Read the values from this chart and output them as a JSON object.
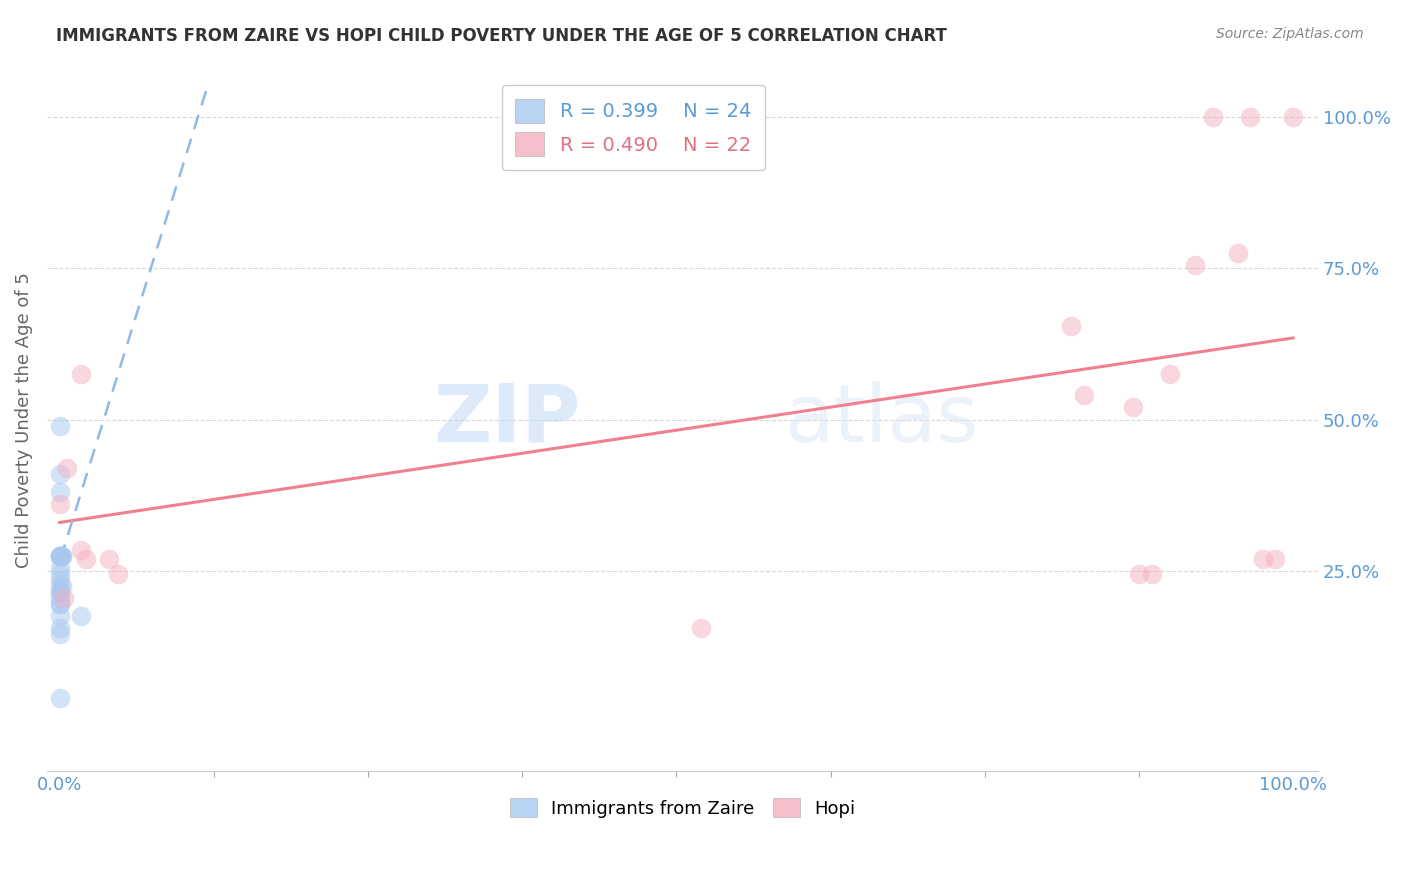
{
  "title": "IMMIGRANTS FROM ZAIRE VS HOPI CHILD POVERTY UNDER THE AGE OF 5 CORRELATION CHART",
  "source": "Source: ZipAtlas.com",
  "ylabel": "Child Poverty Under the Age of 5",
  "xlim": [
    -0.01,
    1.02
  ],
  "ylim": [
    -0.08,
    1.08
  ],
  "ytick_positions": [
    0.25,
    0.5,
    0.75,
    1.0
  ],
  "xtick_positions": [
    0.0,
    1.0
  ],
  "legend_r1": "R = 0.399",
  "legend_n1": "N = 24",
  "legend_r2": "R = 0.490",
  "legend_n2": "N = 22",
  "blue_color": "#a8c8f0",
  "pink_color": "#f4b0c0",
  "blue_line_color": "#90b8e8",
  "pink_line_color": "#f08090",
  "blue_points_x": [
    0.001,
    0.001,
    0.001,
    0.002,
    0.002,
    0.001,
    0.001,
    0.001,
    0.001,
    0.001,
    0.001,
    0.001,
    0.001,
    0.002,
    0.001,
    0.001,
    0.001,
    0.001,
    0.001,
    0.001,
    0.018,
    0.001,
    0.001,
    0.001
  ],
  "blue_points_y": [
    0.49,
    0.41,
    0.38,
    0.275,
    0.275,
    0.275,
    0.275,
    0.275,
    0.275,
    0.255,
    0.245,
    0.235,
    0.225,
    0.225,
    0.215,
    0.215,
    0.205,
    0.195,
    0.195,
    0.175,
    0.175,
    0.155,
    0.145,
    0.04
  ],
  "pink_points_x": [
    0.006,
    0.018,
    0.018,
    0.022,
    0.04,
    0.048,
    0.52,
    0.82,
    0.83,
    0.87,
    0.875,
    0.885,
    0.9,
    0.92,
    0.935,
    0.955,
    0.965,
    0.975,
    0.985,
    1.0,
    0.001,
    0.004
  ],
  "pink_points_y": [
    0.42,
    0.575,
    0.285,
    0.27,
    0.27,
    0.245,
    0.155,
    0.655,
    0.54,
    0.52,
    0.245,
    0.245,
    0.575,
    0.755,
    1.0,
    0.775,
    1.0,
    0.27,
    0.27,
    1.0,
    0.36,
    0.205
  ],
  "blue_trend_x": [
    0.001,
    0.12
  ],
  "blue_trend_y": [
    0.27,
    1.05
  ],
  "pink_trend_x": [
    0.0,
    1.0
  ],
  "pink_trend_y": [
    0.33,
    0.635
  ]
}
